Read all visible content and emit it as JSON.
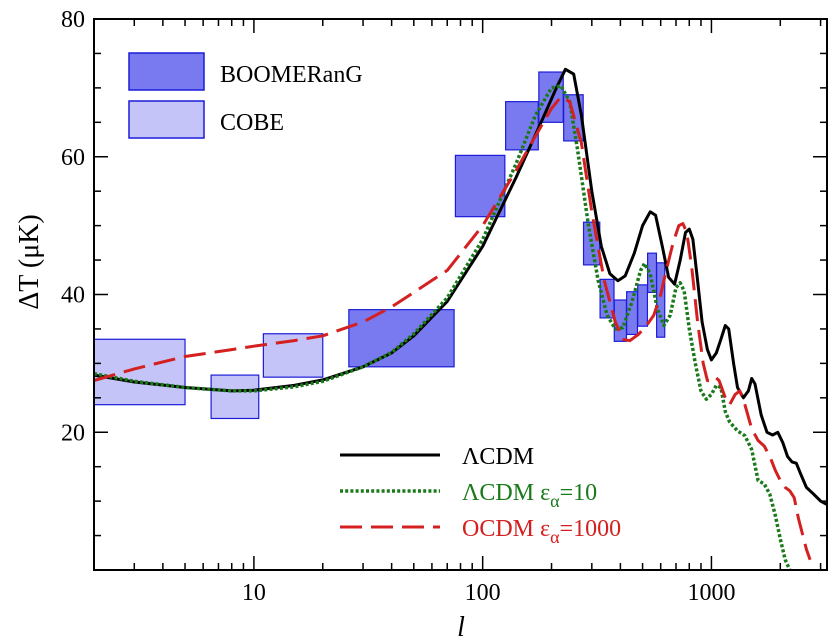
{
  "chart_data": {
    "type": "line",
    "xlabel": "l",
    "ylabel": "ΔT (μK)",
    "xscale": "log",
    "xlim": [
      2,
      3200
    ],
    "ylim": [
      0,
      80
    ],
    "x_ticks": [
      10,
      100,
      1000
    ],
    "x_tick_labels": [
      "10",
      "100",
      "1000"
    ],
    "y_ticks": [
      20,
      40,
      60,
      80
    ],
    "y_tick_labels": [
      "20",
      "40",
      "60",
      "80"
    ],
    "colors": {
      "boomerang_fill": "#7a7af0",
      "boomerang_edge": "#1c1cd8",
      "cobe_fill": "#c4c4f8",
      "cobe_edge": "#1c1cd8",
      "lcdm": "#000000",
      "lcdm_ea": "#1a7a1a",
      "ocdm_ea": "#d42020"
    },
    "legend_top": {
      "placement": "top-left",
      "entries": [
        {
          "label": "BOOMERanG",
          "kind": "box",
          "style": "boomerang"
        },
        {
          "label": "COBE",
          "kind": "box",
          "style": "cobe"
        }
      ]
    },
    "legend_bottom": {
      "placement": "bottom-right",
      "entries": [
        {
          "label": "ΛCDM",
          "series": "lcdm"
        },
        {
          "label": "ΛCDM ε_α=10",
          "series": "lcdm_ea"
        },
        {
          "label": "OCDM ε_α=1000",
          "series": "ocdm_ea"
        }
      ]
    },
    "cobe_boxes": [
      {
        "xmin": 2,
        "xmax": 5,
        "ymin": 24,
        "ymax": 33.5
      },
      {
        "xmin": 6.5,
        "xmax": 10.5,
        "ymin": 22,
        "ymax": 28.3
      },
      {
        "xmin": 11,
        "xmax": 20,
        "ymin": 28,
        "ymax": 34.3
      }
    ],
    "boomerang_boxes": [
      {
        "xmin": 26,
        "xmax": 75,
        "ymin": 29.5,
        "ymax": 37.8
      },
      {
        "xmin": 76,
        "xmax": 125,
        "ymin": 51.3,
        "ymax": 60.2
      },
      {
        "xmin": 126,
        "xmax": 175,
        "ymin": 61,
        "ymax": 68
      },
      {
        "xmin": 176,
        "xmax": 225,
        "ymin": 65,
        "ymax": 72.3
      },
      {
        "xmin": 226,
        "xmax": 275,
        "ymin": 62.3,
        "ymax": 69
      },
      {
        "xmin": 276,
        "xmax": 325,
        "ymin": 44.3,
        "ymax": 50.5
      },
      {
        "xmin": 326,
        "xmax": 375,
        "ymin": 36.6,
        "ymax": 42.2
      },
      {
        "xmin": 376,
        "xmax": 425,
        "ymin": 33.2,
        "ymax": 39.2
      },
      {
        "xmin": 426,
        "xmax": 475,
        "ymin": 34.2,
        "ymax": 40.4
      },
      {
        "xmin": 476,
        "xmax": 525,
        "ymin": 35.4,
        "ymax": 41.4
      },
      {
        "xmin": 526,
        "xmax": 575,
        "ymin": 40.3,
        "ymax": 46
      },
      {
        "xmin": 576,
        "xmax": 625,
        "ymin": 33.8,
        "ymax": 44.6
      }
    ],
    "series": [
      {
        "name": "ΛCDM",
        "key": "lcdm",
        "dash": "solid",
        "points": [
          [
            2,
            28.3
          ],
          [
            3,
            27.3
          ],
          [
            5,
            26.5
          ],
          [
            8,
            26
          ],
          [
            10,
            26.1
          ],
          [
            15,
            26.8
          ],
          [
            20,
            27.6
          ],
          [
            30,
            29.5
          ],
          [
            40,
            31.5
          ],
          [
            50,
            34
          ],
          [
            70,
            39
          ],
          [
            100,
            47
          ],
          [
            140,
            57
          ],
          [
            180,
            65
          ],
          [
            210,
            70
          ],
          [
            230,
            72.7
          ],
          [
            250,
            72
          ],
          [
            270,
            66
          ],
          [
            300,
            55
          ],
          [
            330,
            47
          ],
          [
            360,
            43
          ],
          [
            390,
            42
          ],
          [
            420,
            42.7
          ],
          [
            460,
            46
          ],
          [
            500,
            50
          ],
          [
            540,
            52
          ],
          [
            570,
            51.5
          ],
          [
            610,
            47
          ],
          [
            650,
            42.5
          ],
          [
            690,
            41.5
          ],
          [
            730,
            45
          ],
          [
            770,
            49
          ],
          [
            800,
            49.5
          ],
          [
            830,
            48
          ],
          [
            870,
            42
          ],
          [
            910,
            36
          ],
          [
            960,
            32
          ],
          [
            1000,
            30.5
          ],
          [
            1050,
            31.5
          ],
          [
            1100,
            33.5
          ],
          [
            1150,
            35.5
          ],
          [
            1190,
            35
          ],
          [
            1250,
            30
          ],
          [
            1300,
            26.5
          ],
          [
            1380,
            25
          ],
          [
            1450,
            26
          ],
          [
            1500,
            27.8
          ],
          [
            1550,
            27
          ],
          [
            1650,
            22.5
          ],
          [
            1750,
            20
          ],
          [
            1850,
            19.6
          ],
          [
            1950,
            20
          ],
          [
            2050,
            18.5
          ],
          [
            2150,
            16.5
          ],
          [
            2250,
            15.7
          ],
          [
            2350,
            15.5
          ],
          [
            2450,
            14
          ],
          [
            2600,
            12
          ],
          [
            2800,
            11
          ],
          [
            3000,
            10
          ],
          [
            3200,
            9.5
          ]
        ]
      },
      {
        "name": "ΛCDM ε_α=10",
        "key": "lcdm_ea",
        "dash": "dotted",
        "points": [
          [
            2,
            28.5
          ],
          [
            3,
            27.4
          ],
          [
            5,
            26.5
          ],
          [
            8,
            26
          ],
          [
            10,
            26
          ],
          [
            15,
            26.6
          ],
          [
            20,
            27.4
          ],
          [
            30,
            29.5
          ],
          [
            40,
            31.6
          ],
          [
            50,
            34.3
          ],
          [
            70,
            39.5
          ],
          [
            100,
            48
          ],
          [
            140,
            59
          ],
          [
            170,
            66
          ],
          [
            200,
            70
          ],
          [
            220,
            70.3
          ],
          [
            240,
            68
          ],
          [
            260,
            61
          ],
          [
            290,
            50
          ],
          [
            320,
            42
          ],
          [
            350,
            37
          ],
          [
            380,
            35
          ],
          [
            410,
            35.2
          ],
          [
            450,
            39
          ],
          [
            490,
            43.5
          ],
          [
            510,
            44.5
          ],
          [
            540,
            43
          ],
          [
            580,
            38
          ],
          [
            620,
            35.5
          ],
          [
            660,
            37
          ],
          [
            700,
            41
          ],
          [
            730,
            41.7
          ],
          [
            760,
            40.5
          ],
          [
            800,
            35
          ],
          [
            850,
            30
          ],
          [
            900,
            26
          ],
          [
            950,
            24.8
          ],
          [
            1000,
            25.5
          ],
          [
            1050,
            26.8
          ],
          [
            1100,
            26.5
          ],
          [
            1150,
            23
          ],
          [
            1200,
            21.5
          ],
          [
            1300,
            20.2
          ],
          [
            1400,
            19.5
          ],
          [
            1500,
            17.5
          ],
          [
            1600,
            13
          ],
          [
            1700,
            12.5
          ],
          [
            1800,
            11
          ],
          [
            1900,
            8
          ],
          [
            2000,
            4.5
          ],
          [
            2100,
            1.5
          ],
          [
            2200,
            0
          ]
        ]
      },
      {
        "name": "OCDM ε_α=1000",
        "key": "ocdm_ea",
        "dash": "dashed",
        "points": [
          [
            2,
            27.5
          ],
          [
            3,
            29.2
          ],
          [
            5,
            31
          ],
          [
            8,
            32
          ],
          [
            10,
            32.5
          ],
          [
            15,
            33.3
          ],
          [
            20,
            34
          ],
          [
            30,
            36
          ],
          [
            40,
            38.2
          ],
          [
            50,
            40.3
          ],
          [
            70,
            43.5
          ],
          [
            100,
            50
          ],
          [
            140,
            58
          ],
          [
            170,
            63
          ],
          [
            200,
            67
          ],
          [
            220,
            68.7
          ],
          [
            240,
            68
          ],
          [
            270,
            62
          ],
          [
            300,
            52
          ],
          [
            340,
            42
          ],
          [
            380,
            36
          ],
          [
            410,
            33.5
          ],
          [
            440,
            33.3
          ],
          [
            480,
            34.2
          ],
          [
            520,
            35.5
          ],
          [
            560,
            37
          ],
          [
            600,
            40
          ],
          [
            640,
            44
          ],
          [
            680,
            47.5
          ],
          [
            720,
            50
          ],
          [
            750,
            50.3
          ],
          [
            780,
            49
          ],
          [
            820,
            44
          ],
          [
            870,
            36
          ],
          [
            920,
            30
          ],
          [
            960,
            27.5
          ],
          [
            1000,
            27.5
          ],
          [
            1040,
            28
          ],
          [
            1080,
            27.5
          ],
          [
            1150,
            25
          ],
          [
            1200,
            24
          ],
          [
            1270,
            25.5
          ],
          [
            1330,
            26
          ],
          [
            1400,
            24
          ],
          [
            1500,
            20.5
          ],
          [
            1600,
            18.8
          ],
          [
            1700,
            18
          ],
          [
            1800,
            16.5
          ],
          [
            1900,
            14.5
          ],
          [
            2000,
            13
          ],
          [
            2100,
            12
          ],
          [
            2200,
            11.5
          ],
          [
            2300,
            10.5
          ],
          [
            2400,
            7.5
          ],
          [
            2600,
            3
          ],
          [
            2700,
            1.5
          ]
        ]
      }
    ]
  }
}
